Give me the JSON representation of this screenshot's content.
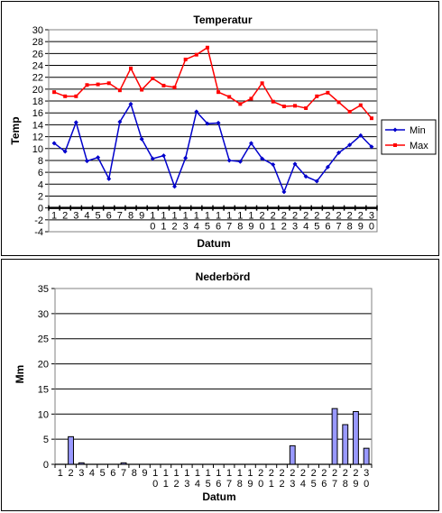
{
  "chart_data": [
    {
      "type": "line",
      "title": "Temperatur",
      "xlabel": "Datum",
      "ylabel": "Temp",
      "ylim": [
        -4,
        30
      ],
      "ytick_step": 2,
      "grid": true,
      "legend_position": "right",
      "categories": [
        "1",
        "2",
        "3",
        "4",
        "5",
        "6",
        "7",
        "8",
        "9",
        "10",
        "11",
        "12",
        "13",
        "14",
        "15",
        "16",
        "17",
        "18",
        "19",
        "20",
        "21",
        "22",
        "23",
        "24",
        "25",
        "26",
        "27",
        "28",
        "29",
        "30"
      ],
      "series": [
        {
          "name": "Min",
          "color": "#0000cc",
          "values": [
            10.9,
            9.5,
            14.4,
            7.9,
            8.5,
            4.9,
            14.5,
            17.5,
            11.6,
            8.3,
            8.8,
            3.6,
            8.4,
            16.2,
            14.2,
            14.3,
            8.0,
            7.8,
            10.9,
            8.3,
            7.3,
            2.7,
            7.4,
            5.3,
            4.5,
            6.9,
            9.3,
            10.6,
            12.2,
            10.3
          ]
        },
        {
          "name": "Max",
          "color": "#ff0000",
          "values": [
            19.5,
            18.8,
            18.8,
            20.7,
            20.8,
            21.0,
            19.8,
            23.5,
            19.9,
            21.8,
            20.6,
            20.3,
            25.0,
            25.8,
            27.0,
            19.5,
            18.7,
            17.5,
            18.4,
            21.0,
            17.9,
            17.1,
            17.2,
            16.8,
            18.8,
            19.4,
            17.8,
            16.2,
            17.3,
            15.1
          ]
        }
      ]
    },
    {
      "type": "bar",
      "title": "Nederbörd",
      "xlabel": "Datum",
      "ylabel": "Mm",
      "ylim": [
        0,
        35
      ],
      "ytick_step": 5,
      "grid": true,
      "bar_color": "#9999ff",
      "categories": [
        "1",
        "2",
        "3",
        "4",
        "5",
        "6",
        "7",
        "8",
        "9",
        "10",
        "11",
        "12",
        "13",
        "14",
        "15",
        "16",
        "17",
        "18",
        "19",
        "20",
        "21",
        "22",
        "23",
        "24",
        "25",
        "26",
        "27",
        "28",
        "29",
        "30"
      ],
      "values": [
        0,
        5.5,
        0.3,
        0,
        0,
        0,
        0.3,
        0,
        0,
        0,
        0,
        0,
        0,
        0,
        0,
        0,
        0,
        0,
        0,
        0,
        0,
        0,
        3.7,
        0,
        0,
        0,
        11.1,
        7.9,
        10.5,
        3.2
      ]
    }
  ]
}
